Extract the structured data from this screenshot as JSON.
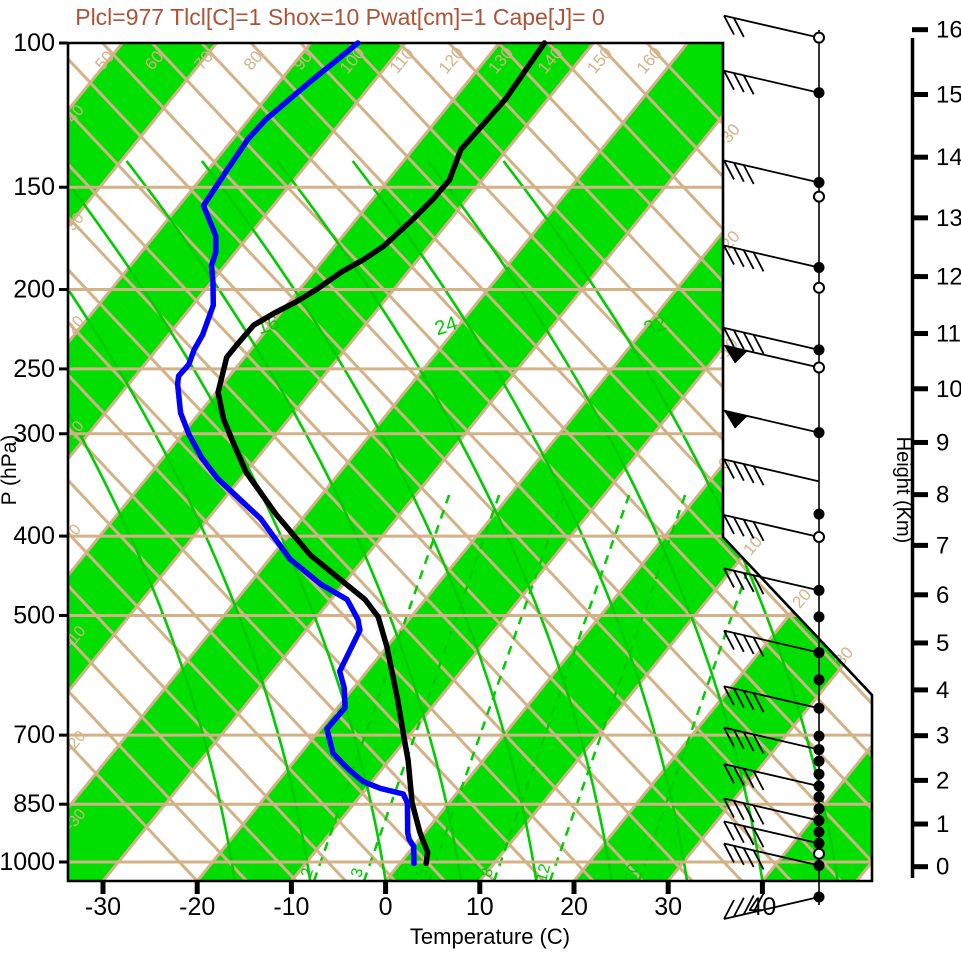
{
  "title": {
    "text": "Plcl=977 Tlcl[C]=1 Shox=10 Pwat[cm]=1 Cape[J]= 0",
    "color": "#AD5236"
  },
  "axes": {
    "pressure": {
      "label": "P (hPa)",
      "ticks": [
        100,
        150,
        200,
        250,
        300,
        400,
        500,
        700,
        850,
        1000
      ]
    },
    "temperature": {
      "label": "Temperature (C)",
      "ticks": [
        -30,
        -20,
        -10,
        0,
        10,
        20,
        30,
        40
      ]
    },
    "height": {
      "label": "Height (Km)",
      "ticks": [
        0,
        1,
        2,
        3,
        4,
        5,
        6,
        7,
        8,
        9,
        10,
        11,
        12,
        13,
        14,
        15,
        16
      ]
    }
  },
  "background": {
    "colors": {
      "band_green": "#00DF00",
      "green_line": "#00CC00",
      "tan": "#D3B287",
      "frame": "#000000",
      "temperature_curve": "#000000",
      "dewpoint_curve": "#0000FF"
    },
    "dry_adiabat_top_labels": [
      50,
      60,
      70,
      80,
      90,
      100,
      110,
      120,
      130,
      140,
      150,
      160
    ],
    "dry_adiabat_left_labels": [
      40,
      30,
      20,
      10,
      0,
      -10,
      -20,
      -30
    ],
    "isotherm_right_labels": [
      -30,
      -20,
      -10,
      0,
      10,
      20,
      30
    ],
    "moist_adiabat_labels": [
      16,
      24,
      32
    ],
    "mixing_ratio_labels": [
      2,
      3,
      5,
      8,
      12,
      20
    ]
  },
  "chart_data": {
    "type": "line",
    "subtype": "skewT-logP-sounding",
    "pressure_range_hpa": [
      100,
      1050
    ],
    "temp_axis_range_c": [
      -34,
      50
    ],
    "grid": "skewed isotherm bands every 10C, tan dry adiabats, green moist adiabats and dashed mixing-ratio lines",
    "legend_position": "none",
    "series": [
      {
        "name": "temperature",
        "color": "#000000",
        "points_p_t": [
          [
            1004,
            2.8
          ],
          [
            973,
            2.0
          ],
          [
            921,
            -0.5
          ],
          [
            847,
            -3.9
          ],
          [
            751,
            -8.0
          ],
          [
            710,
            -10.1
          ],
          [
            632,
            -14.4
          ],
          [
            546,
            -20.0
          ],
          [
            502,
            -23.5
          ],
          [
            478,
            -26.4
          ],
          [
            422,
            -36.0
          ],
          [
            376,
            -43.2
          ],
          [
            334,
            -50.0
          ],
          [
            310,
            -53.5
          ],
          [
            288,
            -56.9
          ],
          [
            267,
            -59.8
          ],
          [
            242,
            -61.9
          ],
          [
            233,
            -61.9
          ],
          [
            221,
            -61.8
          ],
          [
            214,
            -60.7
          ],
          [
            207,
            -59.3
          ],
          [
            200,
            -58.2
          ],
          [
            190,
            -57.0
          ],
          [
            184,
            -55.8
          ],
          [
            177,
            -54.8
          ],
          [
            164,
            -54.0
          ],
          [
            155,
            -53.6
          ],
          [
            147,
            -53.5
          ],
          [
            135,
            -54.9
          ],
          [
            117,
            -54.5
          ],
          [
            100,
            -55.2
          ]
        ]
      },
      {
        "name": "dewpoint",
        "color": "#0000FF",
        "points_p_t": [
          [
            1004,
            1.5
          ],
          [
            957,
            0.0
          ],
          [
            938,
            -1.1
          ],
          [
            921,
            -1.8
          ],
          [
            889,
            -2.9
          ],
          [
            847,
            -4.4
          ],
          [
            826,
            -5.6
          ],
          [
            813,
            -8.5
          ],
          [
            798,
            -10.9
          ],
          [
            773,
            -13.3
          ],
          [
            762,
            -14.3
          ],
          [
            736,
            -16.6
          ],
          [
            688,
            -19.3
          ],
          [
            648,
            -19.2
          ],
          [
            613,
            -21.0
          ],
          [
            585,
            -22.9
          ],
          [
            521,
            -24.3
          ],
          [
            506,
            -25.4
          ],
          [
            478,
            -28.3
          ],
          [
            458,
            -32.4
          ],
          [
            427,
            -37.8
          ],
          [
            381,
            -44.4
          ],
          [
            340,
            -52.5
          ],
          [
            321,
            -55.9
          ],
          [
            301,
            -59.2
          ],
          [
            283,
            -62.0
          ],
          [
            261,
            -64.8
          ],
          [
            255,
            -65.4
          ],
          [
            247,
            -65.3
          ],
          [
            237,
            -66.0
          ],
          [
            227,
            -66.4
          ],
          [
            209,
            -67.8
          ],
          [
            196,
            -69.8
          ],
          [
            187,
            -71.4
          ],
          [
            180,
            -72.1
          ],
          [
            172,
            -73.5
          ],
          [
            158,
            -77.4
          ],
          [
            142,
            -78.0
          ],
          [
            131,
            -78.4
          ],
          [
            124,
            -78.2
          ],
          [
            112,
            -76.8
          ],
          [
            100,
            -75.0
          ]
        ]
      }
    ]
  },
  "wind_barbs": {
    "staff_note": "station markers on vertical staff, barbs point up-left",
    "levels": [
      {
        "p": 98.5,
        "m": "circle",
        "t": 2
      },
      {
        "p": 115,
        "m": "dot",
        "t": 3
      },
      {
        "p": 148,
        "m": "dot",
        "t": 3
      },
      {
        "p": 154,
        "m": "circle",
        "t": 0
      },
      {
        "p": 188,
        "m": "dot",
        "t": 4
      },
      {
        "p": 199,
        "m": "circle",
        "t": 0
      },
      {
        "p": 237,
        "m": "dot",
        "t": 4
      },
      {
        "p": 249,
        "m": "circle",
        "t": 0,
        "pennant": true
      },
      {
        "p": 299,
        "m": "dot",
        "t": 0,
        "pennant": true
      },
      {
        "p": 343,
        "m": "none",
        "t": 4
      },
      {
        "p": 376,
        "m": "dot",
        "t": 0
      },
      {
        "p": 401,
        "m": "circle",
        "t": 4
      },
      {
        "p": 466,
        "m": "dot",
        "t": 4
      },
      {
        "p": 502,
        "m": "dot",
        "t": 0
      },
      {
        "p": 555,
        "m": "dot",
        "t": 4
      },
      {
        "p": 599,
        "m": "dot",
        "t": 0
      },
      {
        "p": 649,
        "m": "dot",
        "t": 4
      },
      {
        "p": 702,
        "m": "dot",
        "t": 0
      },
      {
        "p": 729,
        "m": "dot",
        "t": 4
      },
      {
        "p": 753,
        "m": "dot",
        "t": 0
      },
      {
        "p": 781,
        "m": "dot",
        "t": 0
      },
      {
        "p": 808,
        "m": "dot",
        "t": 4
      },
      {
        "p": 833,
        "m": "dot",
        "t": 0
      },
      {
        "p": 861,
        "m": "dot",
        "t": 0
      },
      {
        "p": 890,
        "m": "dot",
        "t": 4
      },
      {
        "p": 919,
        "m": "dot",
        "t": 0
      },
      {
        "p": 949,
        "m": "dot",
        "t": 4
      },
      {
        "p": 977,
        "m": "circle",
        "t": 0
      },
      {
        "p": 1010,
        "m": "dot",
        "t": 4
      },
      {
        "p": 1050,
        "m": "dot",
        "t": 4,
        "below": true
      }
    ]
  }
}
